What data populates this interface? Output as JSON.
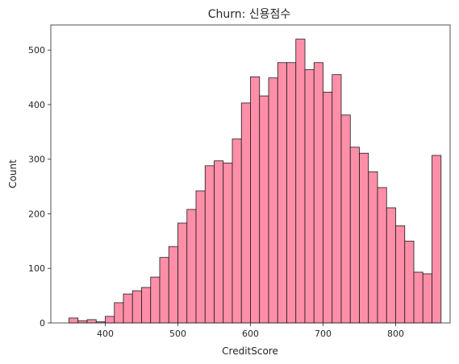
{
  "chart_data": {
    "type": "bar",
    "title": "Churn: 신용점수",
    "xlabel": "CreditScore",
    "ylabel": "Count",
    "xlim": [
      325,
      875
    ],
    "ylim": [
      0,
      546
    ],
    "xticks": [
      400,
      500,
      600,
      700,
      800
    ],
    "yticks": [
      0,
      100,
      200,
      300,
      400,
      500
    ],
    "grid": false,
    "bar_color": "#ff8fa8",
    "bin_start": 350,
    "bin_width": 12.5,
    "values": [
      9,
      4,
      6,
      2,
      12,
      37,
      53,
      59,
      65,
      84,
      120,
      140,
      183,
      208,
      242,
      288,
      297,
      293,
      337,
      403,
      451,
      416,
      449,
      477,
      477,
      520,
      464,
      477,
      423,
      455,
      381,
      322,
      311,
      277,
      248,
      211,
      178,
      150,
      93,
      90,
      307
    ]
  }
}
